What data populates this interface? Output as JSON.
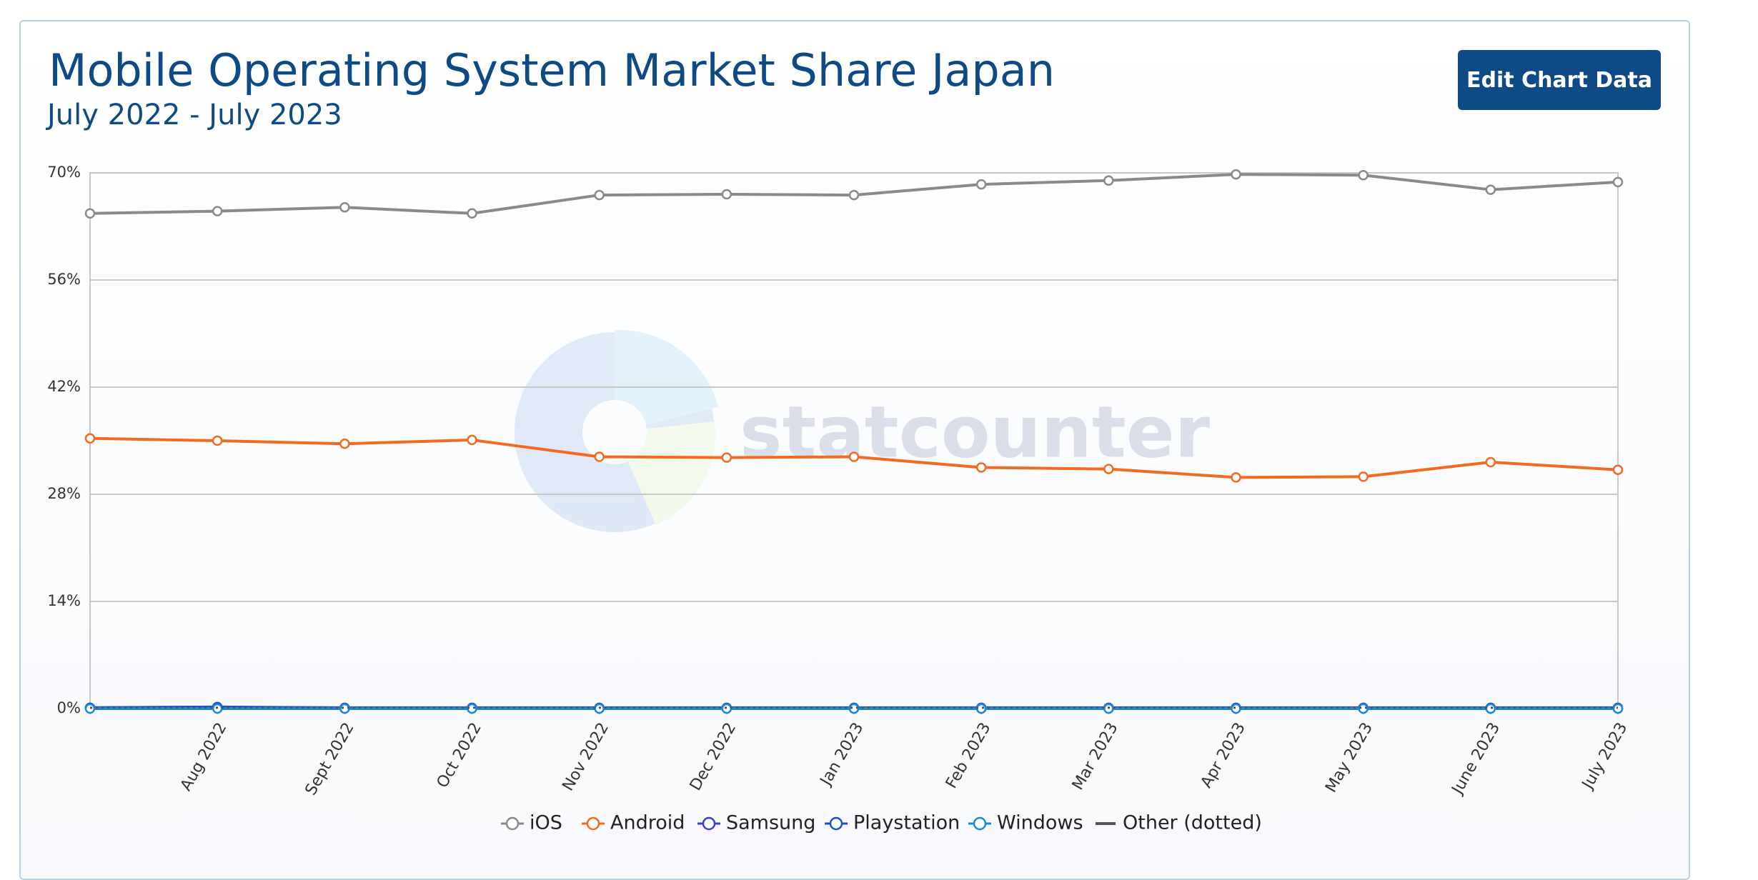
{
  "chart_data": {
    "type": "line",
    "title": "Mobile Operating System Market Share Japan",
    "subtitle": "July 2022 - July 2023",
    "watermark": "statcounter",
    "categories": [
      null,
      "Aug 2022",
      "Sept 2022",
      "Oct 2022",
      "Nov 2022",
      "Dec 2022",
      "Jan 2023",
      "Feb 2023",
      "Mar 2023",
      "Apr 2023",
      "May 2023",
      "June 2023",
      "July 2023"
    ],
    "series": [
      {
        "name": "iOS",
        "color": "#8a8a8a",
        "values": [
          64.7,
          65.0,
          65.5,
          64.7,
          67.1,
          67.2,
          67.1,
          68.5,
          69.0,
          69.8,
          69.7,
          67.8,
          68.8
        ]
      },
      {
        "name": "Android",
        "color": "#f26b21",
        "values": [
          35.3,
          35.0,
          34.6,
          35.1,
          32.9,
          32.8,
          32.9,
          31.5,
          31.3,
          30.2,
          30.3,
          32.2,
          31.2
        ]
      },
      {
        "name": "Samsung",
        "color": "#3a3fd8",
        "values": [
          0.1,
          0.2,
          0.1,
          0.1,
          0.1,
          0.1,
          0.1,
          0.1,
          0.1,
          0.1,
          0.1,
          0.1,
          0.1
        ]
      },
      {
        "name": "Playstation",
        "color": "#1a4fd6",
        "values": [
          0.1,
          0.2,
          0.0,
          0.0,
          0.0,
          0.0,
          0.0,
          0.0,
          0.0,
          0.0,
          0.0,
          0.0,
          0.0
        ]
      },
      {
        "name": "Windows",
        "color": "#1a8ad6",
        "values": [
          0.0,
          0.0,
          0.0,
          0.0,
          0.0,
          0.0,
          0.0,
          0.0,
          0.0,
          0.0,
          0.0,
          0.0,
          0.0
        ]
      },
      {
        "name": "Other (dotted)",
        "color": "#555555",
        "line_style": "dotted",
        "values": [
          0.1,
          0.1,
          0.1,
          0.1,
          0.1,
          0.1,
          0.1,
          0.1,
          0.1,
          0.1,
          0.1,
          0.1,
          0.1
        ]
      }
    ],
    "ylim": [
      0,
      70
    ],
    "yticks": [
      {
        "value": 0,
        "label": "0%"
      },
      {
        "value": 14,
        "label": "14%"
      },
      {
        "value": 28,
        "label": "28%"
      },
      {
        "value": 42,
        "label": "42%"
      },
      {
        "value": 56,
        "label": "56%"
      },
      {
        "value": 70,
        "label": "70%"
      }
    ],
    "grid": true
  },
  "button": "Edit Chart Data"
}
